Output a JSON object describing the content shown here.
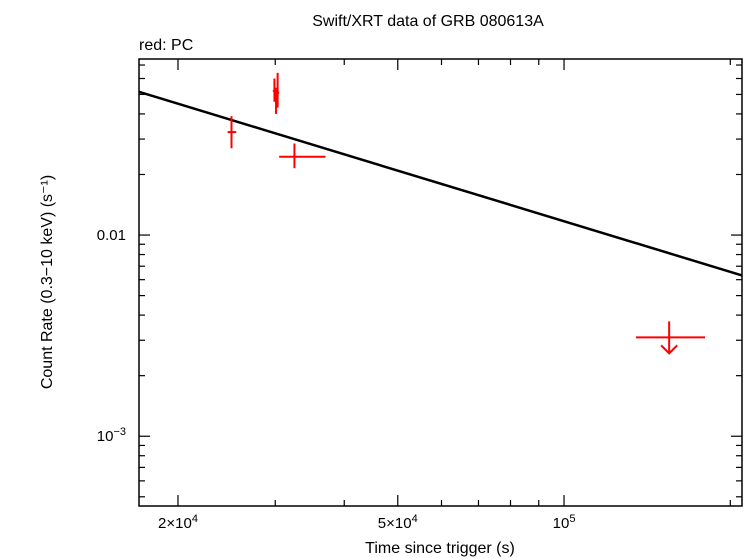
{
  "chart_data": {
    "type": "scatter",
    "title": "Swift/XRT data of GRB 080613A",
    "subtitle": "red: PC",
    "xlabel": "Time since trigger (s)",
    "ylabel": "Count Rate (0.3−10 keV) (s⁻¹)",
    "x_scale": "log",
    "y_scale": "log",
    "xlim": [
      17000,
      210000
    ],
    "ylim": [
      0.00045,
      0.075
    ],
    "x_ticks": [
      {
        "value": 20000,
        "mantissa": "2×10",
        "exp": "4"
      },
      {
        "value": 50000,
        "mantissa": "5×10",
        "exp": "4"
      },
      {
        "value": 100000,
        "mantissa": "10",
        "exp": "5"
      }
    ],
    "y_ticks": [
      {
        "value": 0.01,
        "mantissa": "0.01",
        "exp": ""
      },
      {
        "value": 0.001,
        "mantissa": "10",
        "exp": "−3"
      }
    ],
    "series": [
      {
        "color": "#ff0000",
        "points": [
          {
            "x": 25000,
            "x_lo": 24600,
            "x_hi": 25500,
            "y": 0.0325,
            "y_lo": 0.027,
            "y_hi": 0.039
          },
          {
            "x": 29900,
            "x_lo": 29700,
            "x_hi": 30100,
            "y": 0.052,
            "y_lo": 0.046,
            "y_hi": 0.06
          },
          {
            "x": 30100,
            "x_lo": 29900,
            "x_hi": 30300,
            "y": 0.047,
            "y_lo": 0.04,
            "y_hi": 0.054
          },
          {
            "x": 30300,
            "x_lo": 30100,
            "x_hi": 30500,
            "y": 0.051,
            "y_lo": 0.043,
            "y_hi": 0.064
          },
          {
            "x": 32500,
            "x_lo": 30500,
            "x_hi": 37000,
            "y": 0.0245,
            "y_lo": 0.0215,
            "y_hi": 0.0285
          }
        ],
        "upper_limits": [
          {
            "x": 155000,
            "x_lo": 135000,
            "x_hi": 180000,
            "y": 0.0031
          }
        ]
      }
    ],
    "model": {
      "color": "#000000",
      "points": [
        {
          "x": 17000,
          "y": 0.0515
        },
        {
          "x": 210000,
          "y": 0.0063
        }
      ]
    }
  }
}
